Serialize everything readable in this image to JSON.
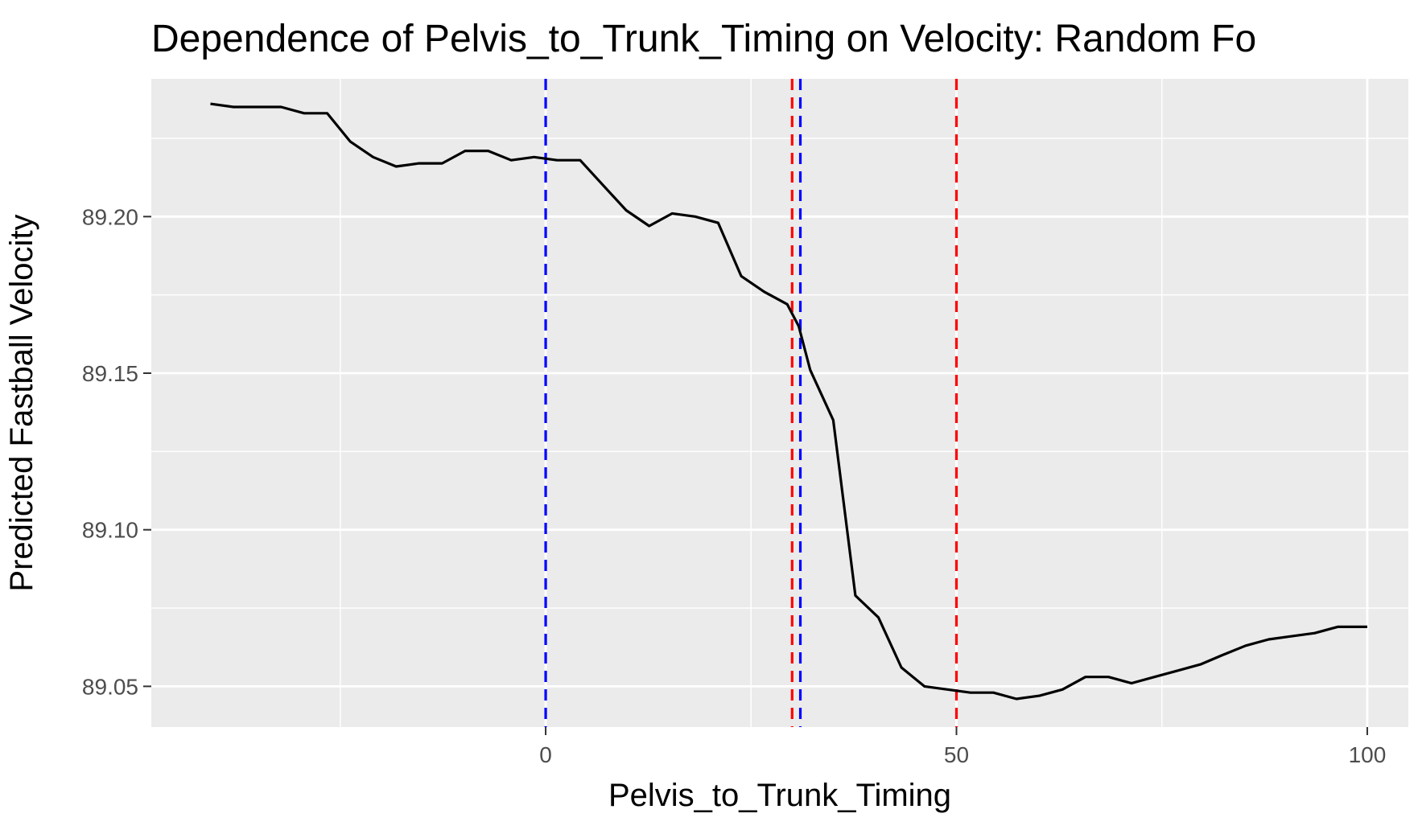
{
  "chart_data": {
    "type": "line",
    "title": "Dependence of Pelvis_to_Trunk_Timing on Velocity: Random Fo",
    "xlabel": "Pelvis_to_Trunk_Timing",
    "ylabel": "Predicted Fastball Velocity",
    "xlim": [
      -48,
      105
    ],
    "ylim": [
      89.037,
      89.244
    ],
    "x_ticks": [
      0,
      50,
      100
    ],
    "x_tick_labels": [
      "0",
      "50",
      "100"
    ],
    "x_minor_ticks": [
      -25,
      25,
      75
    ],
    "y_ticks": [
      89.05,
      89.1,
      89.15,
      89.2
    ],
    "y_tick_labels": [
      "89.05",
      "89.10",
      "89.15",
      "89.20"
    ],
    "y_minor_ticks": [
      89.075,
      89.125,
      89.175,
      89.225
    ],
    "grid": true,
    "background": "#ebebeb",
    "series": [
      {
        "color": "#000000",
        "x": [
          -40.8,
          -38.0,
          -35.0,
          -32.2,
          -29.4,
          -26.6,
          -23.8,
          -21.0,
          -18.2,
          -15.4,
          -12.6,
          -9.8,
          -7.0,
          -4.2,
          -1.4,
          1.4,
          4.2,
          7.0,
          9.8,
          12.6,
          15.4,
          18.2,
          21.0,
          23.8,
          26.6,
          29.4,
          30.8,
          32.2,
          35.0,
          37.7,
          40.5,
          43.3,
          46.1,
          48.9,
          51.7,
          54.5,
          57.3,
          60.1,
          62.9,
          65.7,
          68.5,
          71.3,
          74.1,
          76.9,
          79.7,
          82.4,
          85.2,
          88.0,
          90.8,
          93.6,
          96.4,
          99.2,
          100.0
        ],
        "y": [
          89.236,
          89.235,
          89.235,
          89.235,
          89.233,
          89.233,
          89.224,
          89.219,
          89.216,
          89.217,
          89.217,
          89.221,
          89.221,
          89.218,
          89.219,
          89.218,
          89.218,
          89.21,
          89.202,
          89.197,
          89.201,
          89.2,
          89.198,
          89.181,
          89.176,
          89.172,
          89.165,
          89.151,
          89.135,
          89.079,
          89.072,
          89.056,
          89.05,
          89.049,
          89.048,
          89.048,
          89.046,
          89.047,
          89.049,
          89.053,
          89.053,
          89.051,
          89.053,
          89.055,
          89.057,
          89.06,
          89.063,
          89.065,
          89.066,
          89.067,
          89.069,
          89.069,
          89.069
        ]
      }
    ],
    "reference_lines": [
      {
        "x": 0,
        "color": "#0000ff",
        "style": "dashed"
      },
      {
        "x": 31,
        "color": "#0000ff",
        "style": "dashed"
      },
      {
        "x": 30,
        "color": "#ff0000",
        "style": "dashed"
      },
      {
        "x": 50,
        "color": "#ff0000",
        "style": "dashed"
      }
    ]
  }
}
